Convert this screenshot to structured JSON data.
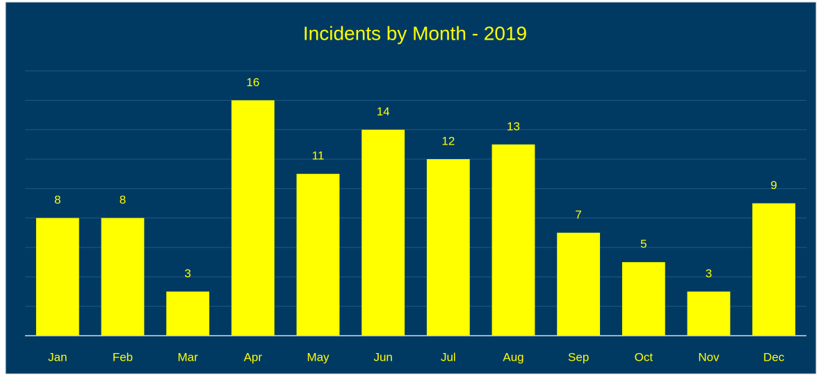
{
  "chart_data": {
    "type": "bar",
    "title": "Incidents by Month - 2019",
    "categories": [
      "Jan",
      "Feb",
      "Mar",
      "Apr",
      "May",
      "Jun",
      "Jul",
      "Aug",
      "Sep",
      "Oct",
      "Nov",
      "Dec"
    ],
    "values": [
      8,
      8,
      3,
      16,
      11,
      14,
      12,
      13,
      7,
      5,
      3,
      9
    ],
    "color": "#ffff00",
    "ylim": [
      0,
      18
    ],
    "yticks": [
      0,
      2,
      4,
      6,
      8,
      10,
      12,
      14,
      16,
      18
    ],
    "grid": true
  }
}
